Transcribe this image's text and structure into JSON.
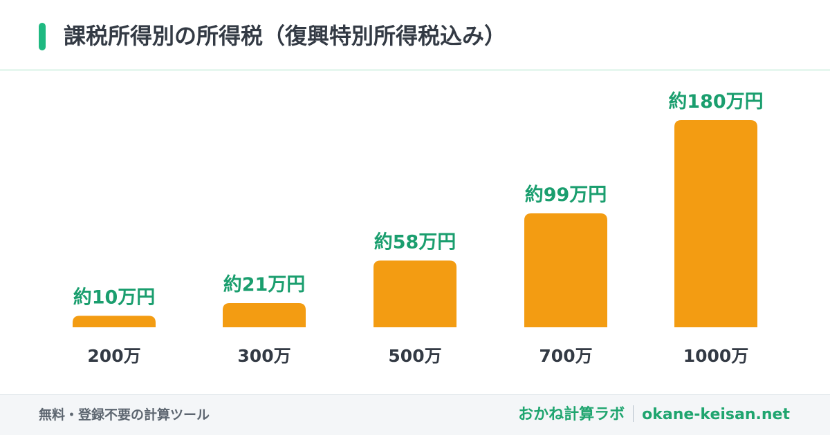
{
  "header": {
    "title": "課税所得別の所得税（復興特別所得税込み）",
    "accent_color": "#1fb981"
  },
  "chart_data": {
    "type": "bar",
    "title": "課税所得別の所得税（復興特別所得税込み）",
    "xlabel": "",
    "ylabel": "",
    "categories": [
      "200万",
      "300万",
      "500万",
      "700万",
      "1000万"
    ],
    "values": [
      10,
      21,
      58,
      99,
      180
    ],
    "value_labels": [
      "約10万円",
      "約21万円",
      "約58万円",
      "約99万円",
      "約180万円"
    ],
    "unit": "万円",
    "ylim": [
      0,
      180
    ],
    "grid": false,
    "legend": "none",
    "bar_color": "#f39c12",
    "label_color": "#1a9e6e",
    "category_color": "#333a44"
  },
  "footer": {
    "left_text": "無料・登録不要の計算ツール",
    "brand": "おかね計算ラボ",
    "site": "okane-keisan.net"
  }
}
